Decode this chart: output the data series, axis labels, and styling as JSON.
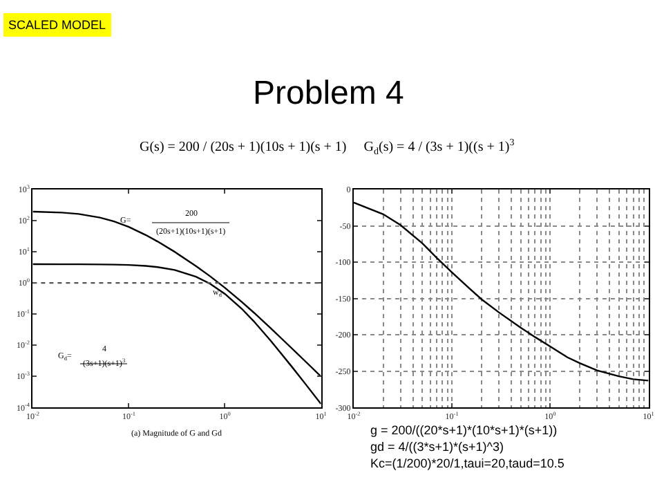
{
  "chart_data": [
    {
      "type": "line",
      "title": "Problem 4",
      "log": "xy",
      "grid": false,
      "x": [
        0.01,
        0.02,
        0.03,
        0.05,
        0.07,
        0.1,
        0.15,
        0.2,
        0.3,
        0.5,
        0.7,
        1,
        1.5,
        2,
        3,
        5,
        7,
        10
      ],
      "series": [
        {
          "color": "#000000",
          "values": [
            195,
            182,
            164,
            126,
            95,
            63,
            34.7,
            21.3,
            10.0,
            3.49,
            1.65,
            0.703,
            0.246,
            0.112,
            0.0351,
            0.00784,
            0.00289,
            0.000995
          ]
        },
        {
          "color": "#000000",
          "values": [
            4.0,
            3.99,
            3.98,
            3.94,
            3.89,
            3.78,
            3.53,
            3.23,
            2.61,
            1.59,
            0.945,
            0.447,
            0.148,
            0.0588,
            0.014,
            0.00201,
            0.000538,
            0.000131
          ]
        }
      ],
      "xlim": [
        0.01,
        10
      ],
      "xticks": [
        {
          "value": 0.01,
          "label": "10$^{-2}$"
        },
        {
          "value": 0.1,
          "label": "10$^{-1}$"
        },
        {
          "value": 1,
          "label": "10$^{0}$"
        },
        {
          "value": 10,
          "label": "10$^{1}$"
        }
      ],
      "ylim": [
        0.0001,
        1000
      ],
      "yticks": [
        {
          "value": 0.0001,
          "label": "10$^{-4}$"
        },
        {
          "value": 0.001,
          "label": "10$^{-3}$"
        },
        {
          "value": 0.01,
          "label": "10$^{-2}$"
        },
        {
          "value": 0.1,
          "label": "10$^{-1}$"
        },
        {
          "value": 1,
          "label": "10$^{0}$"
        },
        {
          "value": 10,
          "label": "10$^{1}$"
        },
        {
          "value": 100,
          "label": "10$^{2}$"
        },
        {
          "value": 1000,
          "label": "10$^{3}$"
        }
      ],
      "ref_lines": [
        {
          "axis": "y",
          "value": 1,
          "line_style": "dotted",
          "color": "#555555"
        }
      ],
      "annotations": [
        "SCALED MODEL",
        "G(s) = 200 / (20s + 1)(10s + 1)(s + 1)     G$_{d}$(s) = 4 / (3s + 1)((s + 1)$^{3}$",
        "G=",
        "200",
        "(20s+1)(10s+1)(s+1)",
        "G$_{d}$=",
        "4",
        "(3s+1)(s+1)$^{3}$",
        {
          "text": "w$_{d}$",
          "x": 0.75,
          "y": 1
        },
        "(a) Magnitude of G and Gd"
      ]
    },
    {
      "type": "line",
      "log": "x",
      "grid": true,
      "x": [
        0.01,
        0.02,
        0.03,
        0.05,
        0.07,
        0.1,
        0.15,
        0.2,
        0.3,
        0.5,
        0.7,
        1,
        1.5,
        2,
        3,
        5,
        7,
        10
      ],
      "series": [
        {
          "color": "#000000",
          "values": [
            -18,
            -34,
            -49,
            -74,
            -94,
            -114,
            -136,
            -151,
            -169,
            -190,
            -203,
            -216,
            -231,
            -239,
            -249,
            -257,
            -261,
            -263
          ]
        }
      ],
      "xlim": [
        0.01,
        10
      ],
      "xticks": [
        {
          "value": 0.01,
          "label": "10$^{-2}$"
        },
        {
          "value": 0.1,
          "label": "10$^{-1}$"
        },
        {
          "value": 1,
          "label": "10$^{0}$"
        },
        {
          "value": 10,
          "label": "10$^{1}$"
        }
      ],
      "ylim": [
        -300,
        0
      ],
      "yticks": [
        0,
        -50,
        -100,
        -150,
        -200,
        -250,
        -300
      ],
      "annotations": [
        "g = 200/((20*s+1)*(10*s+1)*(s+1))",
        "gd = 4/((3*s+1)*(s+1)^3)",
        "Kc=(1/200)*20/1,taui=20,taud=10.5"
      ]
    }
  ]
}
